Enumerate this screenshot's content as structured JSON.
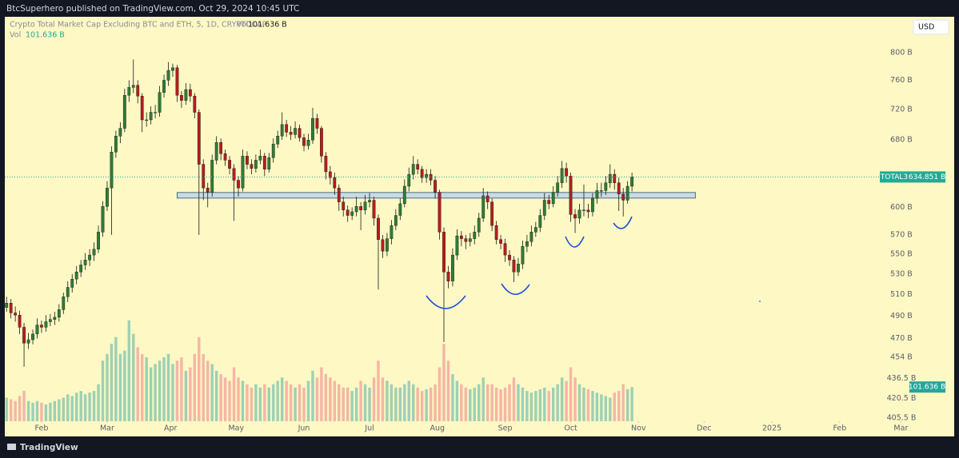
{
  "header": {
    "text": "BtcSuperhero published on TradingView.com, Oct 29, 2024 10:45 UTC"
  },
  "footer": {
    "logo": "TradingView"
  },
  "chart_data": {
    "type": "candlestick",
    "title": "Crypto Total Market Cap Excluding BTC and ETH, 5, 1D, CRYPTOCAP",
    "currency": "USD",
    "symbol": "TOTAL3",
    "price_label": {
      "value": 634.851,
      "label": "634.851 B"
    },
    "up_color": "#2e7d32",
    "down_color": "#b71c1c",
    "log_scale": true,
    "xlim": [
      -3,
      403
    ],
    "xticks": [
      {
        "value": 16,
        "label": "Feb"
      },
      {
        "value": 46,
        "label": "Mar"
      },
      {
        "value": 75,
        "label": "Apr"
      },
      {
        "value": 105,
        "label": "May"
      },
      {
        "value": 136,
        "label": "Jun"
      },
      {
        "value": 166,
        "label": "Jul"
      },
      {
        "value": 197,
        "label": "Aug"
      },
      {
        "value": 228,
        "label": "Sep"
      },
      {
        "value": 258,
        "label": "Oct"
      },
      {
        "value": 289,
        "label": "Nov"
      },
      {
        "value": 319,
        "label": "Dec"
      },
      {
        "value": 350,
        "label": "2025"
      },
      {
        "value": 381,
        "label": "Feb"
      },
      {
        "value": 409,
        "label": "Mar"
      }
    ],
    "ylim": [
      403,
      854
    ],
    "yticks": [
      {
        "value": 800,
        "label": "800 B"
      },
      {
        "value": 760,
        "label": "760 B"
      },
      {
        "value": 720,
        "label": "720 B"
      },
      {
        "value": 680,
        "label": "680 B"
      },
      {
        "value": 600,
        "label": "600 B"
      },
      {
        "value": 570,
        "label": "570 B"
      },
      {
        "value": 550,
        "label": "550 B"
      },
      {
        "value": 530,
        "label": "530 B"
      },
      {
        "value": 510,
        "label": "510 B"
      },
      {
        "value": 490,
        "label": "490 B"
      },
      {
        "value": 470,
        "label": "470 B"
      },
      {
        "value": 454,
        "label": "454 B"
      },
      {
        "value": 436.5,
        "label": "436.5 B"
      },
      {
        "value": 420.5,
        "label": "420.5 B"
      },
      {
        "value": 405.5,
        "label": "405.5 B"
      }
    ],
    "y2lim": [
      0,
      1200
    ],
    "x": [
      0,
      2,
      4,
      6,
      8,
      10,
      12,
      14,
      16,
      18,
      20,
      22,
      24,
      26,
      28,
      30,
      32,
      34,
      36,
      38,
      40,
      42,
      44,
      46,
      48,
      50,
      52,
      54,
      56,
      58,
      60,
      62,
      64,
      66,
      68,
      70,
      72,
      74,
      76,
      78,
      80,
      82,
      84,
      86,
      88,
      90,
      92,
      94,
      96,
      98,
      100,
      102,
      104,
      106,
      108,
      110,
      112,
      114,
      116,
      118,
      120,
      122,
      124,
      126,
      128,
      130,
      132,
      134,
      136,
      138,
      140,
      142,
      144,
      146,
      148,
      150,
      152,
      154,
      156,
      158,
      160,
      162,
      164,
      166,
      168,
      170,
      172,
      174,
      176,
      178,
      180,
      182,
      184,
      186,
      188,
      190,
      192,
      194,
      196,
      198,
      200,
      202,
      204,
      206,
      208,
      210,
      212,
      214,
      216,
      218,
      220,
      222,
      224,
      226,
      228,
      230,
      232,
      234,
      236,
      238,
      240,
      242,
      244,
      246,
      248,
      250,
      252,
      254,
      256,
      258,
      260,
      262,
      264,
      266,
      268,
      270,
      272,
      274,
      276,
      278,
      280,
      282,
      284,
      286
    ],
    "open": [
      498,
      502,
      493,
      491,
      480,
      466,
      469,
      474,
      482,
      480,
      485,
      487,
      489,
      496,
      508,
      517,
      525,
      532,
      539,
      544,
      549,
      555,
      573,
      601,
      622,
      665,
      685,
      695,
      739,
      750,
      753,
      738,
      706,
      706,
      716,
      716,
      743,
      760,
      774,
      778,
      739,
      732,
      747,
      738,
      716,
      650,
      622,
      617,
      655,
      677,
      663,
      655,
      645,
      631,
      622,
      660,
      650,
      645,
      655,
      660,
      644,
      658,
      675,
      685,
      700,
      690,
      687,
      695,
      683,
      673,
      680,
      708,
      695,
      660,
      641,
      634,
      622,
      606,
      597,
      591,
      595,
      601,
      597,
      606,
      608,
      588,
      565,
      553,
      566,
      580,
      591,
      604,
      624,
      638,
      650,
      644,
      634,
      638,
      631,
      617,
      573,
      532,
      523,
      549,
      569,
      566,
      563,
      566,
      573,
      588,
      613,
      606,
      580,
      565,
      561,
      549,
      544,
      532,
      540,
      558,
      563,
      573,
      578,
      591,
      608,
      604,
      617,
      628,
      645,
      636,
      592,
      588,
      597,
      597,
      595,
      610,
      619,
      619,
      628,
      638,
      628,
      615,
      608,
      624
    ],
    "high": [
      508,
      506,
      499,
      495,
      484,
      475,
      478,
      488,
      486,
      491,
      492,
      494,
      501,
      512,
      523,
      530,
      538,
      544,
      551,
      555,
      562,
      580,
      607,
      630,
      672,
      692,
      703,
      748,
      760,
      790,
      760,
      742,
      716,
      724,
      726,
      752,
      768,
      786,
      784,
      782,
      745,
      756,
      755,
      742,
      720,
      656,
      628,
      662,
      685,
      682,
      668,
      660,
      650,
      636,
      668,
      666,
      656,
      662,
      668,
      664,
      664,
      682,
      692,
      716,
      706,
      698,
      704,
      700,
      688,
      688,
      722,
      714,
      698,
      665,
      648,
      640,
      626,
      612,
      602,
      600,
      612,
      606,
      614,
      616,
      612,
      592,
      570,
      572,
      586,
      598,
      610,
      632,
      646,
      660,
      656,
      648,
      644,
      644,
      636,
      620,
      578,
      538,
      556,
      576,
      574,
      570,
      572,
      580,
      594,
      622,
      618,
      610,
      585,
      570,
      566,
      554,
      548,
      546,
      564,
      570,
      580,
      584,
      598,
      616,
      614,
      624,
      636,
      654,
      652,
      640,
      598,
      604,
      626,
      604,
      616,
      628,
      628,
      636,
      650,
      644,
      634,
      622,
      630,
      640
    ],
    "low": [
      494,
      488,
      485,
      474,
      446,
      461,
      465,
      470,
      475,
      476,
      481,
      482,
      485,
      492,
      503,
      512,
      520,
      527,
      534,
      538,
      543,
      551,
      568,
      596,
      570,
      658,
      676,
      690,
      730,
      742,
      728,
      690,
      697,
      700,
      708,
      710,
      736,
      752,
      765,
      730,
      722,
      726,
      730,
      708,
      570,
      608,
      600,
      612,
      650,
      655,
      648,
      638,
      585,
      612,
      618,
      644,
      638,
      640,
      650,
      636,
      640,
      652,
      670,
      680,
      684,
      680,
      682,
      678,
      666,
      668,
      675,
      688,
      652,
      632,
      626,
      614,
      596,
      590,
      584,
      586,
      590,
      575,
      592,
      600,
      580,
      515,
      546,
      548,
      560,
      575,
      586,
      600,
      618,
      632,
      638,
      628,
      628,
      625,
      610,
      565,
      467,
      516,
      518,
      544,
      558,
      555,
      558,
      560,
      568,
      584,
      598,
      574,
      560,
      555,
      542,
      538,
      522,
      528,
      535,
      552,
      558,
      568,
      573,
      586,
      598,
      600,
      612,
      622,
      628,
      584,
      572,
      582,
      590,
      588,
      590,
      604,
      612,
      614,
      622,
      620,
      596,
      590,
      604,
      618
    ],
    "close": [
      502,
      493,
      491,
      480,
      466,
      469,
      474,
      482,
      480,
      485,
      487,
      489,
      496,
      508,
      517,
      525,
      532,
      539,
      544,
      549,
      555,
      573,
      601,
      622,
      665,
      685,
      695,
      739,
      750,
      753,
      738,
      706,
      706,
      716,
      716,
      743,
      760,
      774,
      778,
      739,
      732,
      747,
      738,
      716,
      650,
      622,
      617,
      655,
      677,
      663,
      655,
      645,
      631,
      622,
      660,
      650,
      645,
      655,
      660,
      644,
      658,
      675,
      685,
      700,
      690,
      687,
      695,
      683,
      673,
      680,
      708,
      695,
      660,
      641,
      634,
      622,
      606,
      597,
      591,
      595,
      601,
      597,
      606,
      608,
      588,
      565,
      553,
      566,
      580,
      591,
      604,
      624,
      638,
      650,
      644,
      634,
      638,
      631,
      617,
      573,
      532,
      523,
      549,
      569,
      566,
      563,
      566,
      573,
      588,
      613,
      606,
      580,
      565,
      561,
      549,
      544,
      532,
      540,
      558,
      563,
      573,
      578,
      591,
      608,
      604,
      617,
      628,
      645,
      636,
      592,
      588,
      597,
      597,
      595,
      610,
      619,
      619,
      628,
      638,
      628,
      615,
      608,
      624,
      634.851
    ],
    "volume": {
      "name": "Vol",
      "last_label": "101.636 B",
      "up_color": "#8cc9b3",
      "down_color": "#f4a9a0",
      "values": [
        70,
        65,
        60,
        75,
        90,
        60,
        55,
        60,
        55,
        50,
        55,
        60,
        65,
        70,
        80,
        75,
        85,
        90,
        80,
        85,
        90,
        110,
        180,
        200,
        230,
        250,
        200,
        210,
        300,
        260,
        220,
        200,
        190,
        160,
        170,
        180,
        190,
        200,
        170,
        180,
        190,
        150,
        160,
        200,
        250,
        200,
        180,
        170,
        150,
        140,
        130,
        120,
        160,
        130,
        120,
        110,
        100,
        110,
        100,
        110,
        100,
        110,
        120,
        130,
        120,
        110,
        100,
        110,
        100,
        120,
        150,
        130,
        160,
        140,
        130,
        120,
        110,
        100,
        100,
        90,
        100,
        120,
        110,
        100,
        130,
        180,
        130,
        120,
        110,
        100,
        100,
        110,
        120,
        110,
        100,
        90,
        95,
        100,
        110,
        160,
        230,
        180,
        140,
        120,
        110,
        100,
        95,
        100,
        110,
        130,
        110,
        110,
        100,
        95,
        100,
        110,
        130,
        110,
        100,
        90,
        85,
        90,
        95,
        100,
        90,
        100,
        110,
        130,
        120,
        160,
        130,
        110,
        100,
        95,
        90,
        85,
        80,
        75,
        70,
        85,
        90,
        110,
        95,
        101.636
      ]
    },
    "annotations": {
      "zone": {
        "x": [
          78,
          315
        ],
        "y": [
          610.4,
          616.8
        ]
      }
    }
  }
}
